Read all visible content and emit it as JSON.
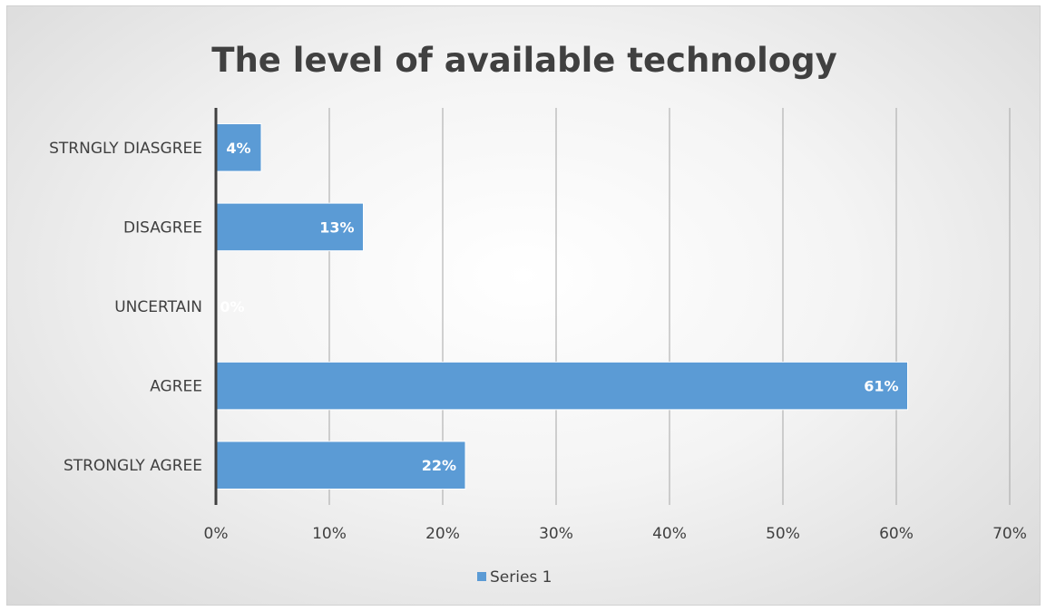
{
  "chart_data": {
    "type": "bar",
    "orientation": "horizontal",
    "title": "The level of available technology",
    "xlabel": "",
    "ylabel": "",
    "categories": [
      "STRNGLY DIASGREE",
      "DISAGREE",
      "UNCERTAIN",
      "AGREE",
      "STRONGLY AGREE"
    ],
    "series": [
      {
        "name": "Series 1",
        "values": [
          0.04,
          0.13,
          0,
          0.61,
          0.22
        ],
        "labels": [
          "4%",
          "13%",
          "0%",
          "61%",
          "22%"
        ],
        "color": "#5b9bd5"
      }
    ],
    "xlim": [
      0,
      0.7
    ],
    "xticks": [
      0,
      0.1,
      0.2,
      0.3,
      0.4,
      0.5,
      0.6,
      0.7
    ],
    "xtick_labels": [
      "0%",
      "10%",
      "20%",
      "30%",
      "40%",
      "50%",
      "60%",
      "70%"
    ],
    "grid": true,
    "legend_position": "bottom",
    "colors": {
      "bar": "#5b9bd5",
      "grid": "#a6a6a6",
      "axis": "#404040",
      "text": "#404040"
    }
  }
}
